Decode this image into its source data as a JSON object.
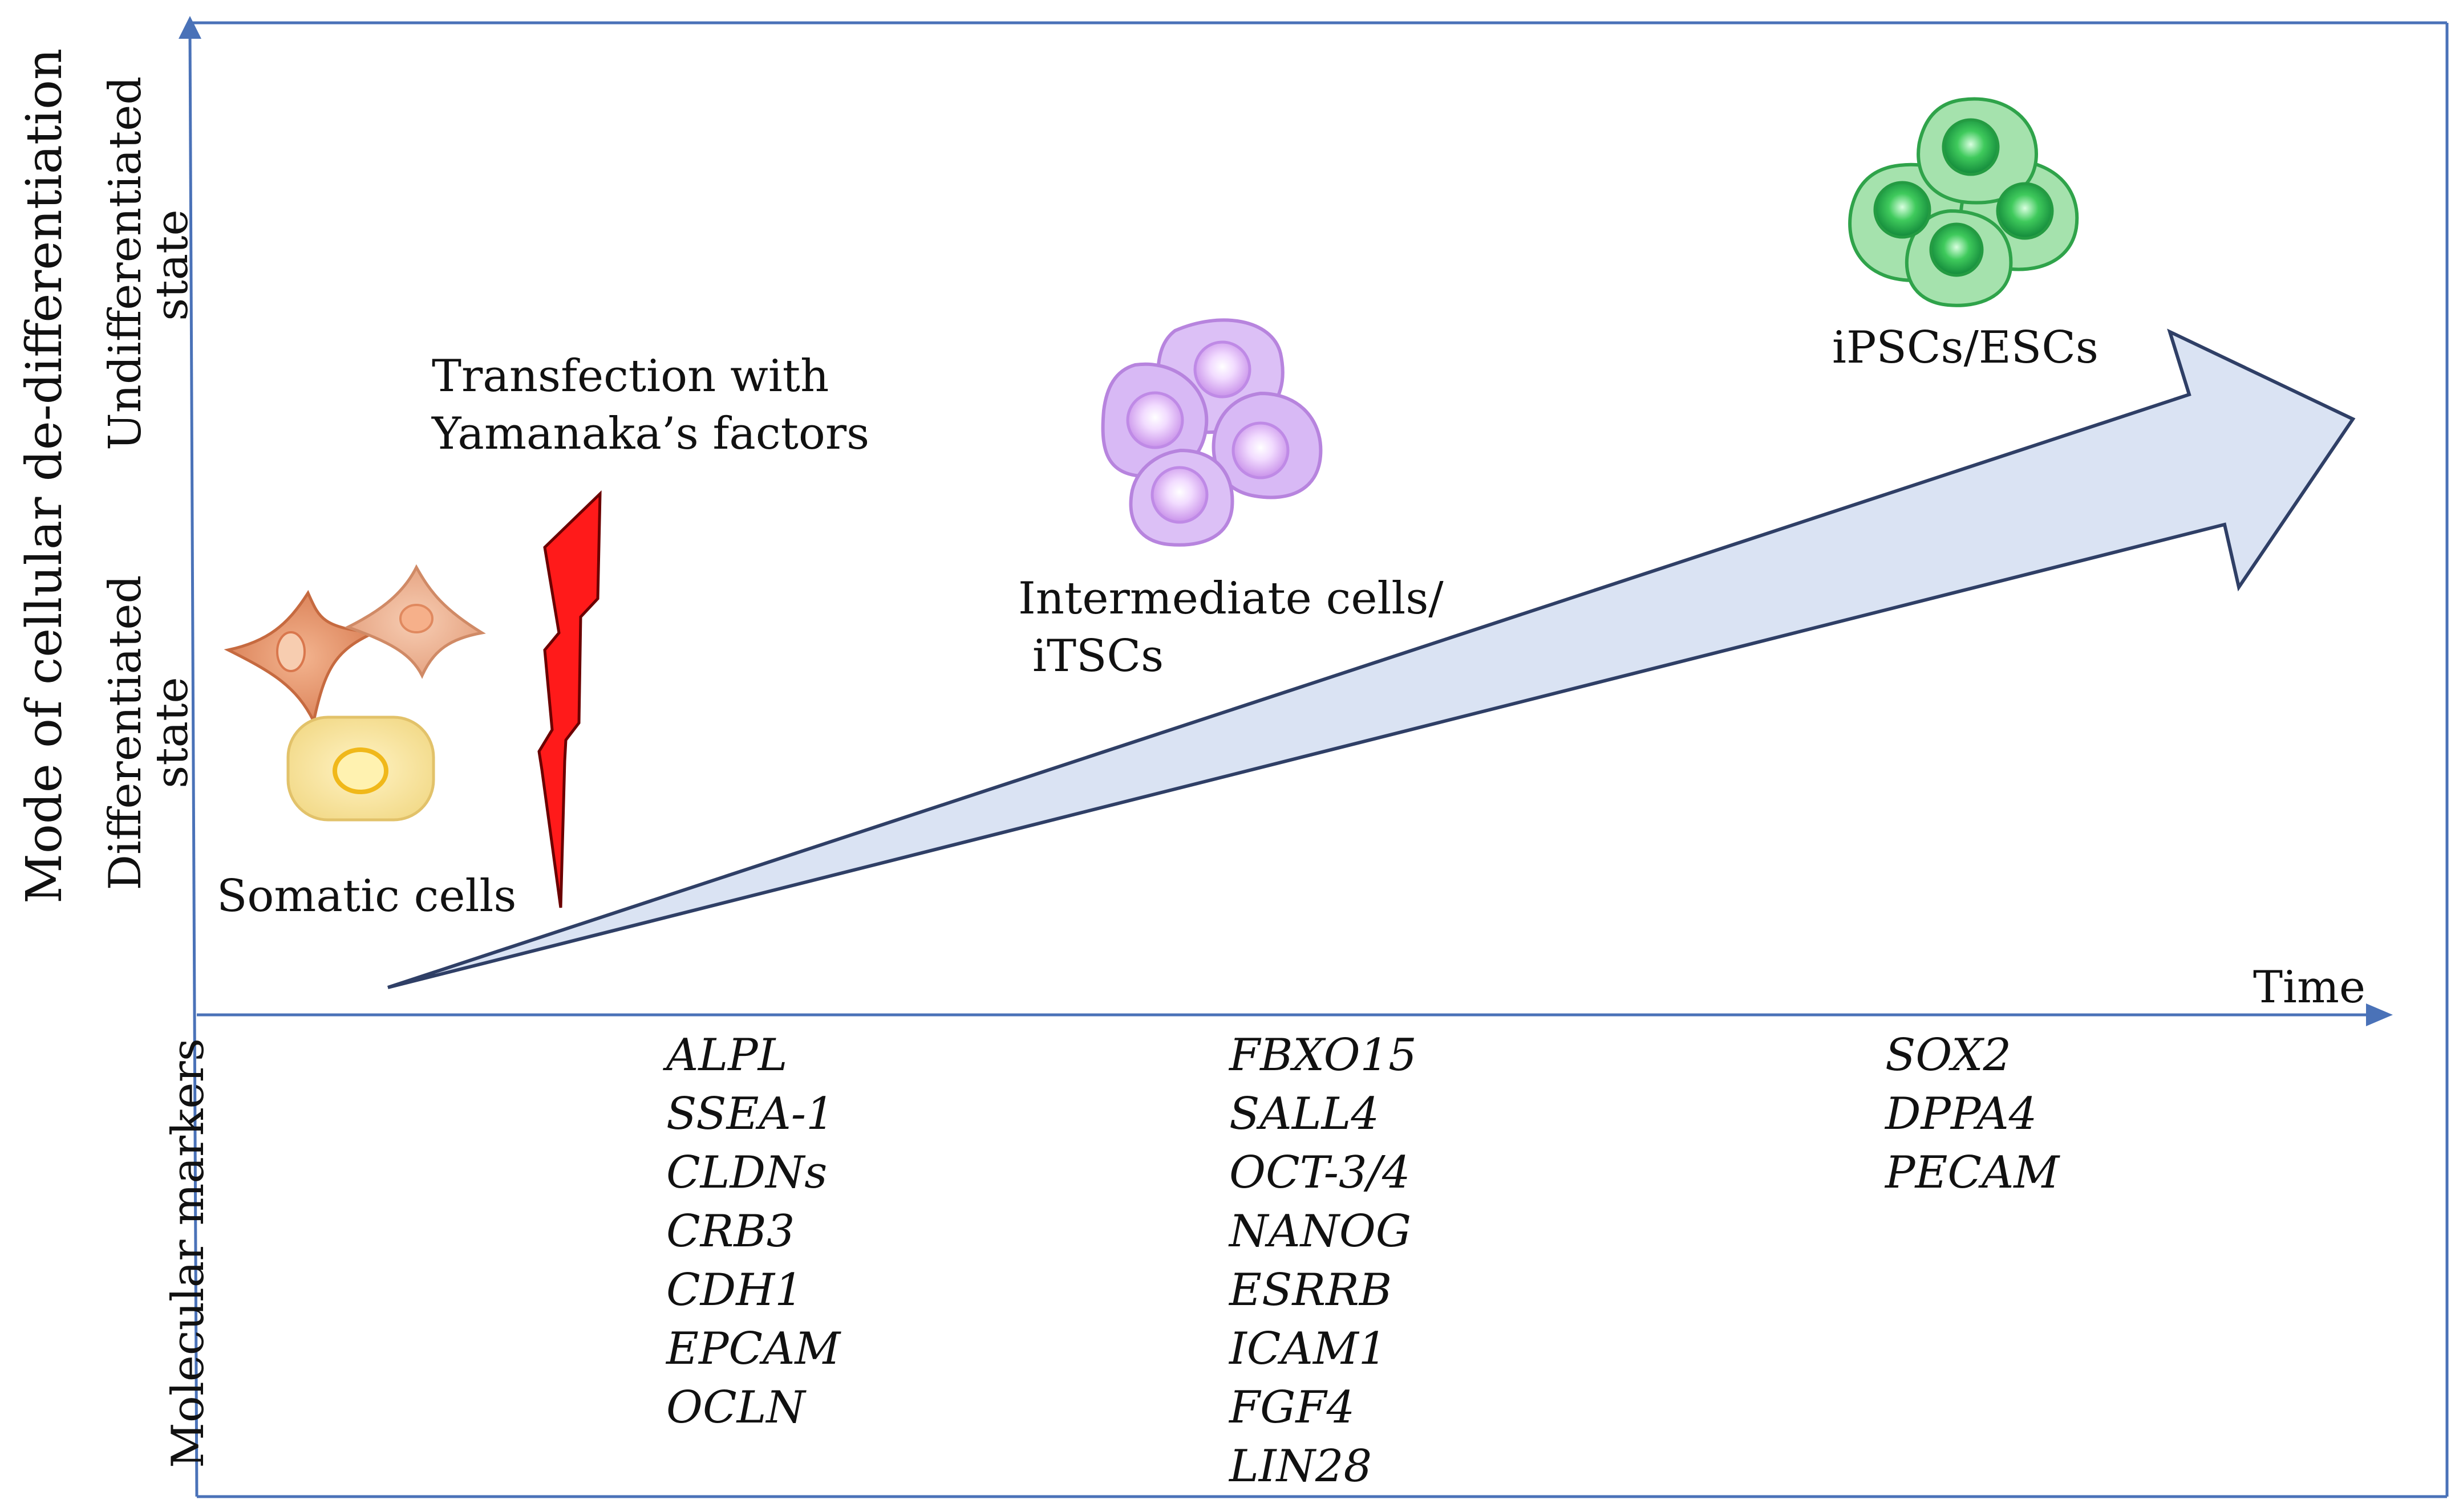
{
  "y_axis_label": "Mode of cellular de-differentiation",
  "y_axis_top": {
    "line1": "Undifferentiated",
    "line2": "state"
  },
  "y_axis_bottom": {
    "line1": "Differentiated",
    "line2": "state"
  },
  "x_axis_label": "Time",
  "markers_axis_label": "Molecular markers",
  "stages": {
    "somatic": "Somatic cells",
    "transfection": {
      "line1": "Transfection with",
      "line2": "Yamanaka’s factors"
    },
    "intermediate": {
      "line1": "Intermediate cells/",
      "line2": "iTSCs"
    },
    "pluripotent": "iPSCs/ESCs"
  },
  "markers": {
    "early": [
      "ALPL",
      "SSEA-1",
      "CLDNs",
      "CRB3",
      "CDH1",
      "EPCAM",
      "OCLN"
    ],
    "intermediate": [
      "FBXO15",
      "SALL4",
      "OCT-3/4",
      "NANOG",
      "ESRRB",
      "ICAM1",
      "FGF4",
      "LIN28"
    ],
    "late": [
      "SOX2",
      "DPPA4",
      "PECAM"
    ]
  },
  "colors": {
    "axis": "#4a72b8",
    "arrow_fill": "#dae3f3",
    "arrow_stroke": "#2f3f66",
    "bolt": "#ff1a1a",
    "somatic_orange": "#e4936a",
    "somatic_peach": "#eeb08f",
    "somatic_yellow": "#f7e39c",
    "intermediate_purple": "#d7b2f4",
    "pluripotent_green": "#8fd59a"
  }
}
